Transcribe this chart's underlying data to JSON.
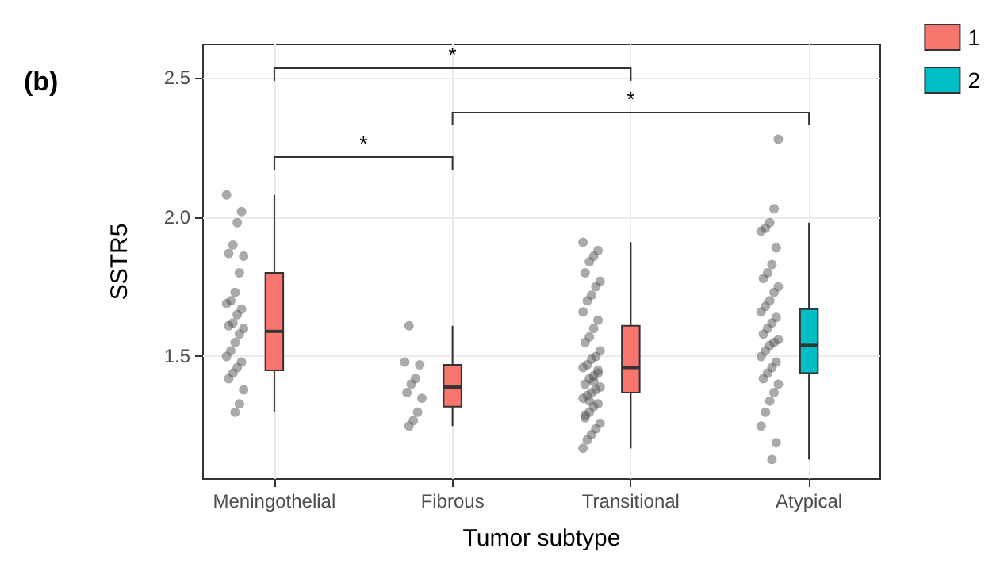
{
  "chart_data": {
    "type": "box",
    "title": "(b)",
    "xlabel": "Tumor subtype",
    "ylabel": "SSTR5",
    "legend": "top right",
    "grid": true,
    "categories": [
      "Meningothelial",
      "Fibrous",
      "Transitional",
      "Atypical"
    ],
    "ylim": [
      1.06,
      2.62
    ],
    "yticks": [
      {
        "value": 1.5,
        "label": "1.5"
      },
      {
        "value": 2,
        "label": "2.0"
      },
      {
        "value": 2.5,
        "label": "2.5"
      }
    ],
    "series": [
      {
        "name": "1",
        "color": "#f8766d",
        "boxes": [
          {
            "low": 1.3,
            "q1": 1.45,
            "median": 1.59,
            "q3": 1.8,
            "high": 2.08
          },
          {
            "low": 1.25,
            "q1": 1.32,
            "median": 1.39,
            "q3": 1.47,
            "high": 1.61
          },
          {
            "low": 1.17,
            "q1": 1.37,
            "median": 1.46,
            "q3": 1.61,
            "high": 1.91
          },
          null
        ]
      },
      {
        "name": "2",
        "color": "#00bfc4",
        "boxes": [
          null,
          null,
          null,
          {
            "low": 1.13,
            "q1": 1.44,
            "median": 1.54,
            "q3": 1.67,
            "high": 1.98
          }
        ]
      },
      {
        "type": "scatter",
        "color": "#555555",
        "x": [
          "Meningothelial",
          "Meningothelial",
          "Meningothelial",
          "Meningothelial",
          "Meningothelial",
          "Meningothelial",
          "Meningothelial",
          "Meningothelial",
          "Meningothelial",
          "Meningothelial",
          "Meningothelial",
          "Meningothelial",
          "Meningothelial",
          "Meningothelial",
          "Meningothelial",
          "Meningothelial",
          "Meningothelial",
          "Meningothelial",
          "Meningothelial",
          "Meningothelial",
          "Meningothelial",
          "Meningothelial",
          "Meningothelial",
          "Meningothelial",
          "Meningothelial",
          "Meningothelial",
          "Fibrous",
          "Fibrous",
          "Fibrous",
          "Fibrous",
          "Fibrous",
          "Fibrous",
          "Fibrous",
          "Fibrous",
          "Fibrous",
          "Fibrous",
          "Transitional",
          "Transitional",
          "Transitional",
          "Transitional",
          "Transitional",
          "Transitional",
          "Transitional",
          "Transitional",
          "Transitional",
          "Transitional",
          "Transitional",
          "Transitional",
          "Transitional",
          "Transitional",
          "Transitional",
          "Transitional",
          "Transitional",
          "Transitional",
          "Transitional",
          "Transitional",
          "Transitional",
          "Transitional",
          "Transitional",
          "Transitional",
          "Transitional",
          "Transitional",
          "Transitional",
          "Transitional",
          "Transitional",
          "Transitional",
          "Transitional",
          "Transitional",
          "Transitional",
          "Transitional",
          "Transitional",
          "Transitional",
          "Transitional",
          "Transitional",
          "Transitional",
          "Transitional",
          "Transitional",
          "Atypical",
          "Atypical",
          "Atypical",
          "Atypical",
          "Atypical",
          "Atypical",
          "Atypical",
          "Atypical",
          "Atypical",
          "Atypical",
          "Atypical",
          "Atypical",
          "Atypical",
          "Atypical",
          "Atypical",
          "Atypical",
          "Atypical",
          "Atypical",
          "Atypical",
          "Atypical",
          "Atypical",
          "Atypical",
          "Atypical",
          "Atypical",
          "Atypical",
          "Atypical",
          "Atypical",
          "Atypical",
          "Atypical",
          "Atypical",
          "Atypical",
          "Atypical",
          "Atypical",
          "Atypical"
        ],
        "values": [
          2.08,
          2.02,
          1.98,
          1.9,
          1.87,
          1.86,
          1.8,
          1.73,
          1.7,
          1.69,
          1.67,
          1.65,
          1.62,
          1.61,
          1.6,
          1.58,
          1.55,
          1.52,
          1.5,
          1.48,
          1.46,
          1.44,
          1.42,
          1.38,
          1.33,
          1.3,
          1.61,
          1.48,
          1.47,
          1.42,
          1.4,
          1.37,
          1.35,
          1.3,
          1.27,
          1.25,
          1.91,
          1.88,
          1.86,
          1.84,
          1.8,
          1.77,
          1.75,
          1.72,
          1.7,
          1.66,
          1.63,
          1.6,
          1.57,
          1.55,
          1.52,
          1.5,
          1.49,
          1.47,
          1.46,
          1.44,
          1.43,
          1.42,
          1.4,
          1.39,
          1.38,
          1.37,
          1.36,
          1.35,
          1.33,
          1.32,
          1.3,
          1.28,
          1.26,
          1.24,
          1.22,
          1.2,
          1.17,
          1.45,
          1.41,
          1.34,
          1.29,
          2.28,
          2.03,
          1.98,
          1.96,
          1.95,
          1.89,
          1.83,
          1.8,
          1.78,
          1.75,
          1.73,
          1.7,
          1.68,
          1.66,
          1.64,
          1.62,
          1.6,
          1.58,
          1.56,
          1.55,
          1.54,
          1.52,
          1.5,
          1.48,
          1.46,
          1.44,
          1.42,
          1.4,
          1.37,
          1.34,
          1.3,
          1.25,
          1.19,
          1.13
        ]
      }
    ],
    "annotations": [
      "*",
      "*",
      "*"
    ]
  }
}
